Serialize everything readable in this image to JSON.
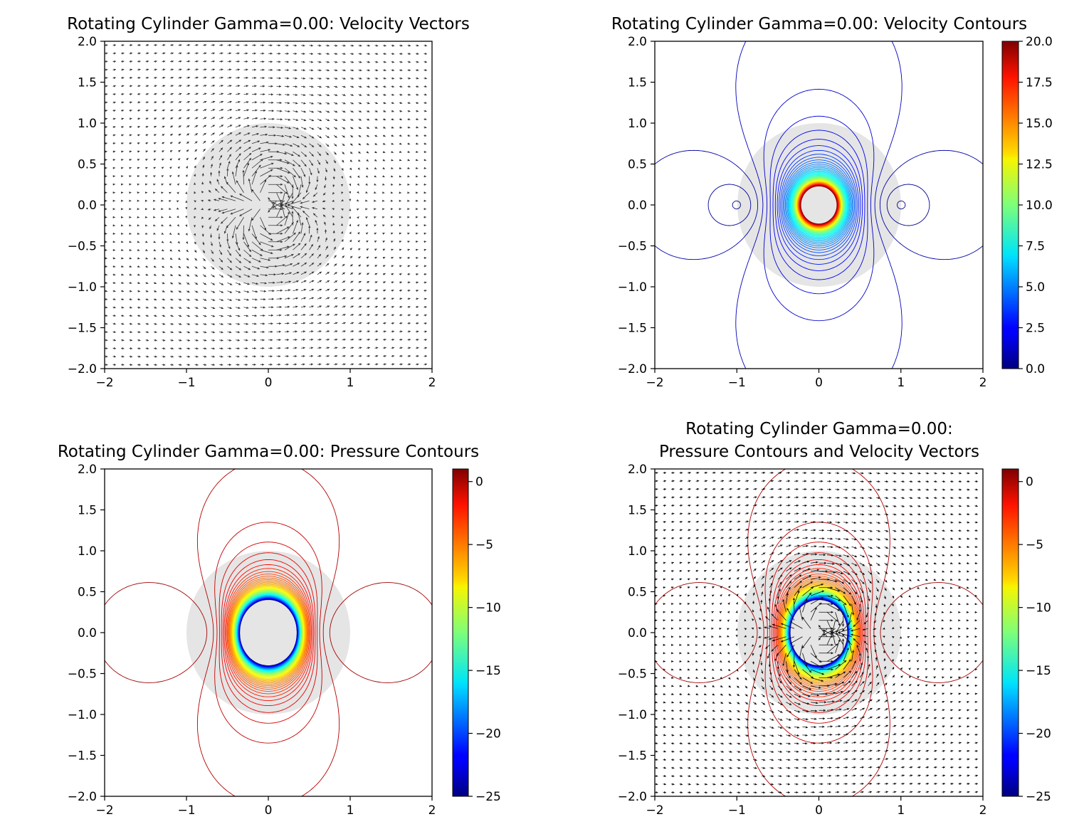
{
  "chart_data": [
    {
      "type": "quiver",
      "title": "Rotating Cylinder Gamma=0.00: Velocity Vectors",
      "xlim": [
        -2,
        2
      ],
      "ylim": [
        -2,
        2
      ],
      "xticks": [
        -2,
        -1,
        0,
        1,
        2
      ],
      "yticks": [
        -2.0,
        -1.5,
        -1.0,
        -0.5,
        0.0,
        0.5,
        1.0,
        1.5,
        2.0
      ],
      "cylinder": {
        "center": [
          0,
          0
        ],
        "radius": 1.0,
        "color": "#e5e5e5"
      },
      "freestream_U": 1.0,
      "grid_spacing": 0.1,
      "vector_color": "#333333"
    },
    {
      "type": "contour",
      "title": "Rotating Cylinder Gamma=0.00: Velocity Contours",
      "xlim": [
        -2,
        2
      ],
      "ylim": [
        -2,
        2
      ],
      "xticks": [
        -2,
        -1,
        0,
        1,
        2
      ],
      "yticks": [
        -2.0,
        -1.5,
        -1.0,
        -0.5,
        0.0,
        0.5,
        1.0,
        1.5,
        2.0
      ],
      "cylinder": {
        "center": [
          0,
          0
        ],
        "radius": 1.0,
        "color": "#e5e5e5"
      },
      "field": "velocity_magnitude",
      "colormap": "jet",
      "colorbar": {
        "min": 0.0,
        "max": 20.0,
        "ticks": [
          "0.0",
          "2.5",
          "5.0",
          "7.5",
          "10.0",
          "12.5",
          "15.0",
          "17.5",
          "20.0"
        ]
      }
    },
    {
      "type": "contour",
      "title": "Rotating Cylinder Gamma=0.00: Pressure Contours",
      "xlim": [
        -2,
        2
      ],
      "ylim": [
        -2,
        2
      ],
      "xticks": [
        -2,
        -1,
        0,
        1,
        2
      ],
      "yticks": [
        -2.0,
        -1.5,
        -1.0,
        -0.5,
        0.0,
        0.5,
        1.0,
        1.5,
        2.0
      ],
      "cylinder": {
        "center": [
          0,
          0
        ],
        "radius": 1.0,
        "color": "#e5e5e5"
      },
      "field": "pressure",
      "colormap": "jet",
      "colorbar": {
        "min": -25,
        "max": 1,
        "ticks": [
          "0",
          "−5",
          "−10",
          "−15",
          "−20",
          "−25"
        ]
      }
    },
    {
      "type": "contour+quiver",
      "title": "Rotating Cylinder Gamma=0.00:",
      "title_line2": "Pressure Contours and Velocity Vectors",
      "xlim": [
        -2,
        2
      ],
      "ylim": [
        -2,
        2
      ],
      "xticks": [
        -2,
        -1,
        0,
        1,
        2
      ],
      "yticks": [
        -2.0,
        -1.5,
        -1.0,
        -0.5,
        0.0,
        0.5,
        1.0,
        1.5,
        2.0
      ],
      "cylinder": {
        "center": [
          0,
          0
        ],
        "radius": 1.0,
        "color": "#e5e5e5"
      },
      "field": "pressure",
      "colormap": "jet",
      "colorbar": {
        "min": -25,
        "max": 1,
        "ticks": [
          "0",
          "−5",
          "−10",
          "−15",
          "−20",
          "−25"
        ]
      }
    }
  ],
  "tick_format": {
    "minus": "−"
  }
}
